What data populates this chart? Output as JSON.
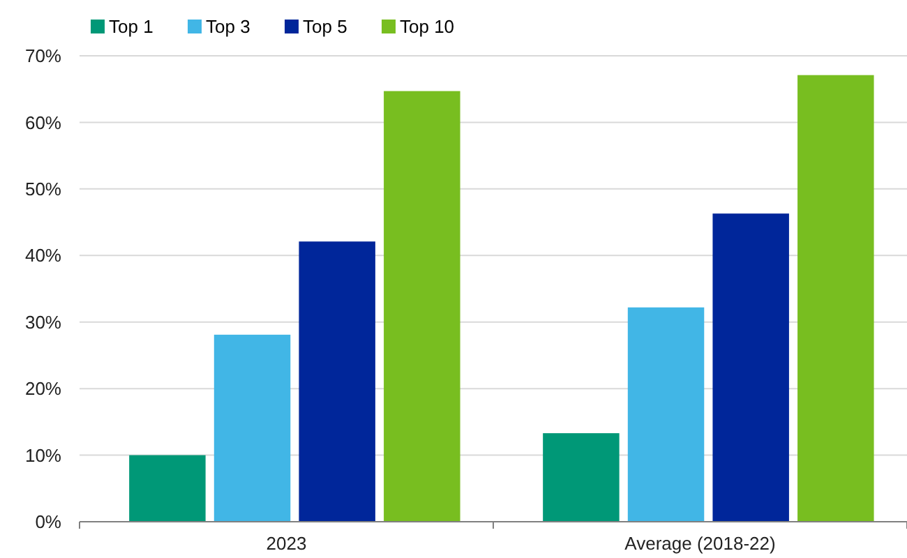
{
  "chart_data": {
    "type": "bar",
    "categories": [
      "2023",
      "Average (2018-22)"
    ],
    "series": [
      {
        "name": "Top 1",
        "color": "#009877",
        "values": [
          10,
          13.3
        ]
      },
      {
        "name": "Top 3",
        "color": "#41b6e6",
        "values": [
          28.1,
          32.2
        ]
      },
      {
        "name": "Top 5",
        "color": "#00269a",
        "values": [
          42.1,
          46.3
        ]
      },
      {
        "name": "Top 10",
        "color": "#78be20",
        "values": [
          64.7,
          67.1
        ]
      }
    ],
    "ylim": [
      0,
      70
    ],
    "yticks": [
      {
        "value": 0,
        "label": "0%"
      },
      {
        "value": 10,
        "label": "10%"
      },
      {
        "value": 20,
        "label": "20%"
      },
      {
        "value": 30,
        "label": "30%"
      },
      {
        "value": 40,
        "label": "40%"
      },
      {
        "value": 50,
        "label": "50%"
      },
      {
        "value": 60,
        "label": "60%"
      },
      {
        "value": 70,
        "label": "70%"
      }
    ],
    "grid": "y",
    "legend": "top left"
  }
}
